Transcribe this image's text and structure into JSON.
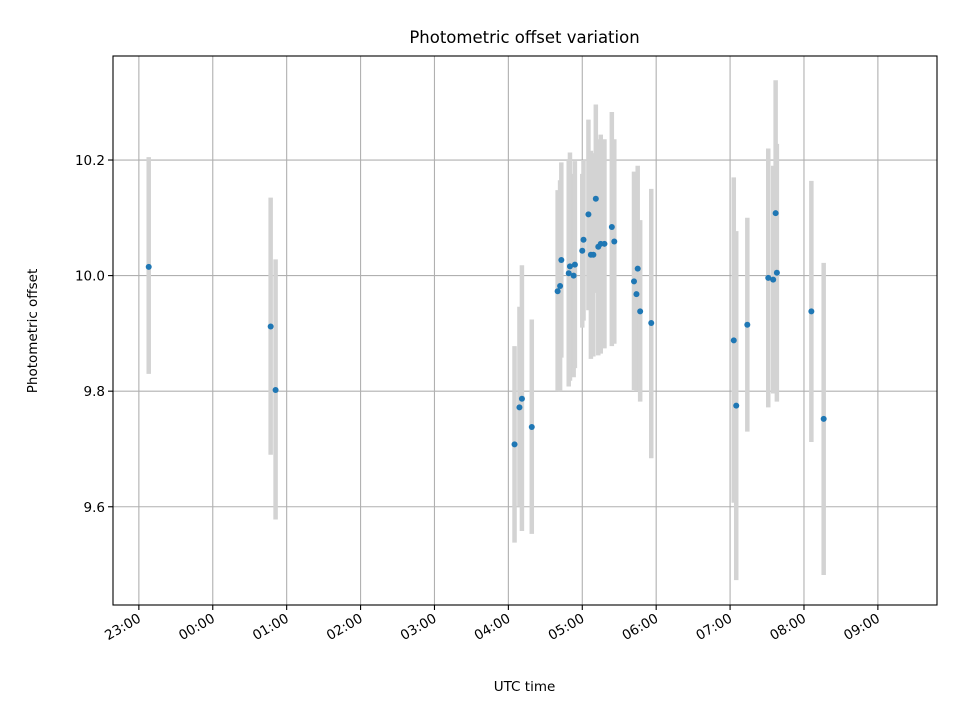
{
  "chart_data": {
    "type": "scatter",
    "title": "Photometric offset variation",
    "xlabel": "UTC time",
    "ylabel": "Photometric offset",
    "x_unit": "hours since 23:00",
    "xlim": [
      -0.35,
      10.8
    ],
    "ylim": [
      9.43,
      10.38
    ],
    "grid": true,
    "xticks": [
      "23:00",
      "00:00",
      "01:00",
      "02:00",
      "03:00",
      "04:00",
      "05:00",
      "06:00",
      "07:00",
      "08:00",
      "09:00"
    ],
    "yticks": [
      9.6,
      9.8,
      10.0,
      10.2
    ],
    "ytick_labels": [
      "9.6",
      "9.8",
      "10.0",
      "10.2"
    ],
    "colors": {
      "point": "#1f77b4",
      "errorbar": "#d3d3d3"
    },
    "series": [
      {
        "points": [
          {
            "x": "23:08",
            "y": 10.015,
            "lo": 9.83,
            "hi": 10.205
          },
          {
            "x": "00:47",
            "y": 9.912,
            "lo": 9.69,
            "hi": 10.135
          },
          {
            "x": "00:51",
            "y": 9.802,
            "lo": 9.578,
            "hi": 10.028
          },
          {
            "x": "04:05",
            "y": 9.708,
            "lo": 9.538,
            "hi": 9.878
          },
          {
            "x": "04:09",
            "y": 9.772,
            "lo": 9.6,
            "hi": 9.946
          },
          {
            "x": "04:11",
            "y": 9.787,
            "lo": 9.558,
            "hi": 10.018
          },
          {
            "x": "04:19",
            "y": 9.738,
            "lo": 9.553,
            "hi": 9.924
          },
          {
            "x": "04:40",
            "y": 9.973,
            "lo": 9.8,
            "hi": 10.148
          },
          {
            "x": "04:42",
            "y": 9.982,
            "lo": 9.8,
            "hi": 10.165
          },
          {
            "x": "04:43",
            "y": 10.027,
            "lo": 9.858,
            "hi": 10.196
          },
          {
            "x": "04:49",
            "y": 10.004,
            "lo": 9.808,
            "hi": 10.2
          },
          {
            "x": "04:50",
            "y": 10.016,
            "lo": 9.818,
            "hi": 10.213
          },
          {
            "x": "04:53",
            "y": 10.0,
            "lo": 9.824,
            "hi": 10.176
          },
          {
            "x": "04:54",
            "y": 10.019,
            "lo": 9.84,
            "hi": 10.198
          },
          {
            "x": "05:00",
            "y": 10.043,
            "lo": 9.91,
            "hi": 10.176
          },
          {
            "x": "05:01",
            "y": 10.062,
            "lo": 9.922,
            "hi": 10.2
          },
          {
            "x": "05:05",
            "y": 10.106,
            "lo": 9.94,
            "hi": 10.27
          },
          {
            "x": "05:07",
            "y": 10.036,
            "lo": 9.856,
            "hi": 10.216
          },
          {
            "x": "05:09",
            "y": 10.036,
            "lo": 9.86,
            "hi": 10.212
          },
          {
            "x": "05:11",
            "y": 10.133,
            "lo": 9.97,
            "hi": 10.296
          },
          {
            "x": "05:13",
            "y": 10.05,
            "lo": 9.862,
            "hi": 10.236
          },
          {
            "x": "05:15",
            "y": 10.055,
            "lo": 9.865,
            "hi": 10.244
          },
          {
            "x": "05:18",
            "y": 10.055,
            "lo": 9.874,
            "hi": 10.236
          },
          {
            "x": "05:24",
            "y": 10.084,
            "lo": 9.878,
            "hi": 10.283
          },
          {
            "x": "05:26",
            "y": 10.059,
            "lo": 9.882,
            "hi": 10.236
          },
          {
            "x": "05:42",
            "y": 9.99,
            "lo": 9.802,
            "hi": 10.18
          },
          {
            "x": "05:44",
            "y": 9.968,
            "lo": 9.8,
            "hi": 10.138
          },
          {
            "x": "05:45",
            "y": 10.012,
            "lo": 9.834,
            "hi": 10.19
          },
          {
            "x": "05:47",
            "y": 9.938,
            "lo": 9.782,
            "hi": 10.096
          },
          {
            "x": "05:56",
            "y": 9.918,
            "lo": 9.684,
            "hi": 10.15
          },
          {
            "x": "07:03",
            "y": 9.888,
            "lo": 9.607,
            "hi": 10.17
          },
          {
            "x": "07:05",
            "y": 9.775,
            "lo": 9.473,
            "hi": 10.077
          },
          {
            "x": "07:14",
            "y": 9.915,
            "lo": 9.73,
            "hi": 10.1
          },
          {
            "x": "07:31",
            "y": 9.996,
            "lo": 9.772,
            "hi": 10.22
          },
          {
            "x": "07:35",
            "y": 9.993,
            "lo": 9.796,
            "hi": 10.19
          },
          {
            "x": "07:37",
            "y": 10.108,
            "lo": 9.878,
            "hi": 10.338
          },
          {
            "x": "07:38",
            "y": 10.005,
            "lo": 9.782,
            "hi": 10.228
          },
          {
            "x": "08:06",
            "y": 9.938,
            "lo": 9.712,
            "hi": 10.164
          },
          {
            "x": "08:16",
            "y": 9.752,
            "lo": 9.482,
            "hi": 10.022
          }
        ]
      }
    ]
  }
}
